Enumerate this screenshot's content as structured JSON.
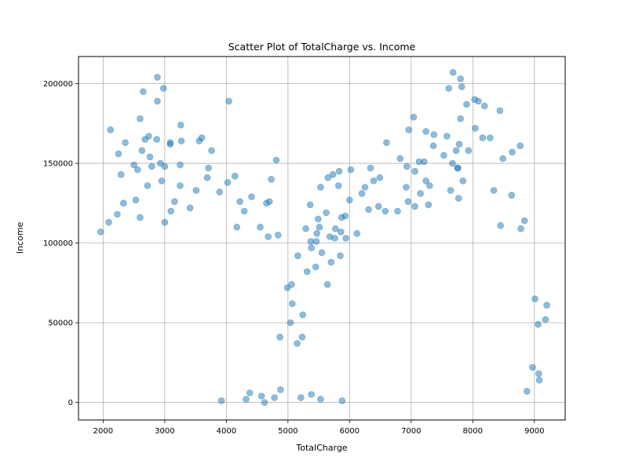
{
  "chart_data": {
    "type": "scatter",
    "title": "Scatter Plot of TotalCharge vs. Income",
    "xlabel": "TotalCharge",
    "ylabel": "Income",
    "xlim": [
      1600,
      9500
    ],
    "ylim": [
      -11000,
      217000
    ],
    "xticks": [
      2000,
      3000,
      4000,
      5000,
      6000,
      7000,
      8000,
      9000
    ],
    "yticks": [
      0,
      50000,
      100000,
      150000,
      200000
    ],
    "xtick_labels": [
      "2000",
      "3000",
      "4000",
      "5000",
      "6000",
      "7000",
      "8000",
      "9000"
    ],
    "ytick_labels": [
      "0",
      "50000",
      "100000",
      "150000",
      "200000"
    ],
    "grid": true,
    "marker_color": "#1f77b4",
    "marker_alpha": 0.5,
    "series": [
      {
        "points": [
          [
            2880,
            204000
          ],
          [
            2650,
            195000
          ],
          [
            2980,
            197000
          ],
          [
            2880,
            189000
          ],
          [
            4040,
            189000
          ],
          [
            2600,
            178000
          ],
          [
            3260,
            174000
          ],
          [
            2120,
            171000
          ],
          [
            2740,
            167000
          ],
          [
            2680,
            165000
          ],
          [
            3090,
            163000
          ],
          [
            3270,
            164000
          ],
          [
            3600,
            166000
          ],
          [
            3560,
            164000
          ],
          [
            2360,
            163000
          ],
          [
            3760,
            158000
          ],
          [
            2630,
            158000
          ],
          [
            3090,
            162000
          ],
          [
            2870,
            165000
          ],
          [
            2250,
            156000
          ],
          [
            2760,
            154000
          ],
          [
            2500,
            149000
          ],
          [
            2560,
            146000
          ],
          [
            2930,
            150000
          ],
          [
            3000,
            148000
          ],
          [
            3710,
            147000
          ],
          [
            3250,
            149000
          ],
          [
            2790,
            148000
          ],
          [
            2290,
            143000
          ],
          [
            4140,
            142000
          ],
          [
            4810,
            152000
          ],
          [
            4730,
            140000
          ],
          [
            3690,
            141000
          ],
          [
            4020,
            138000
          ],
          [
            2950,
            139000
          ],
          [
            2720,
            136000
          ],
          [
            3250,
            136000
          ],
          [
            3510,
            133000
          ],
          [
            3890,
            132000
          ],
          [
            2530,
            127000
          ],
          [
            2330,
            125000
          ],
          [
            3160,
            126000
          ],
          [
            4410,
            129000
          ],
          [
            4220,
            126000
          ],
          [
            4700,
            126000
          ],
          [
            4650,
            125000
          ],
          [
            3100,
            120000
          ],
          [
            3410,
            122000
          ],
          [
            2230,
            118000
          ],
          [
            2600,
            116000
          ],
          [
            4290,
            120000
          ],
          [
            4550,
            110000
          ],
          [
            4170,
            110000
          ],
          [
            4680,
            104000
          ],
          [
            4840,
            105000
          ],
          [
            1960,
            107000
          ],
          [
            2090,
            113000
          ],
          [
            3000,
            113000
          ],
          [
            7680,
            207000
          ],
          [
            7800,
            203000
          ],
          [
            7820,
            198000
          ],
          [
            7610,
            197000
          ],
          [
            8030,
            190000
          ],
          [
            8090,
            189000
          ],
          [
            7900,
            187000
          ],
          [
            8190,
            186000
          ],
          [
            8440,
            183000
          ],
          [
            7040,
            179000
          ],
          [
            7800,
            178000
          ],
          [
            6960,
            171000
          ],
          [
            7240,
            170000
          ],
          [
            8040,
            172000
          ],
          [
            7370,
            168000
          ],
          [
            8280,
            166000
          ],
          [
            8160,
            166000
          ],
          [
            6600,
            163000
          ],
          [
            7580,
            167000
          ],
          [
            7780,
            162000
          ],
          [
            8770,
            161000
          ],
          [
            7360,
            161000
          ],
          [
            7930,
            158000
          ],
          [
            8640,
            157000
          ],
          [
            7730,
            158000
          ],
          [
            6820,
            153000
          ],
          [
            7530,
            155000
          ],
          [
            8490,
            153000
          ],
          [
            7130,
            151000
          ],
          [
            7210,
            151000
          ],
          [
            7670,
            150000
          ],
          [
            7760,
            147000
          ],
          [
            6340,
            147000
          ],
          [
            6020,
            146000
          ],
          [
            6930,
            148000
          ],
          [
            7060,
            145000
          ],
          [
            7750,
            147000
          ],
          [
            5830,
            145000
          ],
          [
            5730,
            143000
          ],
          [
            6490,
            141000
          ],
          [
            6390,
            139000
          ],
          [
            7240,
            139000
          ],
          [
            7840,
            139000
          ],
          [
            7300,
            136000
          ],
          [
            6920,
            135000
          ],
          [
            8340,
            133000
          ],
          [
            7640,
            133000
          ],
          [
            5820,
            136000
          ],
          [
            5650,
            141000
          ],
          [
            5530,
            135000
          ],
          [
            6250,
            135000
          ],
          [
            6200,
            131000
          ],
          [
            7150,
            131000
          ],
          [
            6000,
            127000
          ],
          [
            8630,
            130000
          ],
          [
            7770,
            128000
          ],
          [
            6950,
            126000
          ],
          [
            7060,
            123000
          ],
          [
            7280,
            124000
          ],
          [
            6470,
            123000
          ],
          [
            6310,
            121000
          ],
          [
            6580,
            120000
          ],
          [
            6780,
            120000
          ],
          [
            8840,
            114000
          ],
          [
            8450,
            111000
          ],
          [
            8780,
            109000
          ],
          [
            5930,
            117000
          ],
          [
            5870,
            116000
          ],
          [
            5490,
            115000
          ],
          [
            5620,
            119000
          ],
          [
            5360,
            124000
          ],
          [
            5290,
            109000
          ],
          [
            5510,
            110000
          ],
          [
            5770,
            109000
          ],
          [
            5860,
            107000
          ],
          [
            5940,
            103000
          ],
          [
            6120,
            106000
          ],
          [
            5470,
            106000
          ],
          [
            5460,
            101000
          ],
          [
            5370,
            101000
          ],
          [
            5760,
            103000
          ],
          [
            5680,
            104000
          ],
          [
            5380,
            97000
          ],
          [
            5550,
            94000
          ],
          [
            5160,
            92000
          ],
          [
            5850,
            92000
          ],
          [
            5700,
            88000
          ],
          [
            5450,
            85000
          ],
          [
            5310,
            82000
          ],
          [
            5640,
            74000
          ],
          [
            4990,
            72000
          ],
          [
            5060,
            74000
          ],
          [
            5070,
            62000
          ],
          [
            5240,
            55000
          ],
          [
            5040,
            50000
          ],
          [
            5230,
            41000
          ],
          [
            5150,
            37000
          ],
          [
            4870,
            41000
          ],
          [
            4880,
            8000
          ],
          [
            4780,
            3000
          ],
          [
            5210,
            3000
          ],
          [
            5380,
            5000
          ],
          [
            5530,
            2000
          ],
          [
            5880,
            1000
          ],
          [
            4380,
            6000
          ],
          [
            4320,
            2000
          ],
          [
            4570,
            4000
          ],
          [
            4620,
            0
          ],
          [
            3920,
            1000
          ],
          [
            9200,
            61000
          ],
          [
            9180,
            52000
          ],
          [
            9010,
            65000
          ],
          [
            9060,
            49000
          ],
          [
            9070,
            18000
          ],
          [
            9080,
            14000
          ],
          [
            8970,
            22000
          ],
          [
            8880,
            7000
          ]
        ]
      }
    ]
  }
}
